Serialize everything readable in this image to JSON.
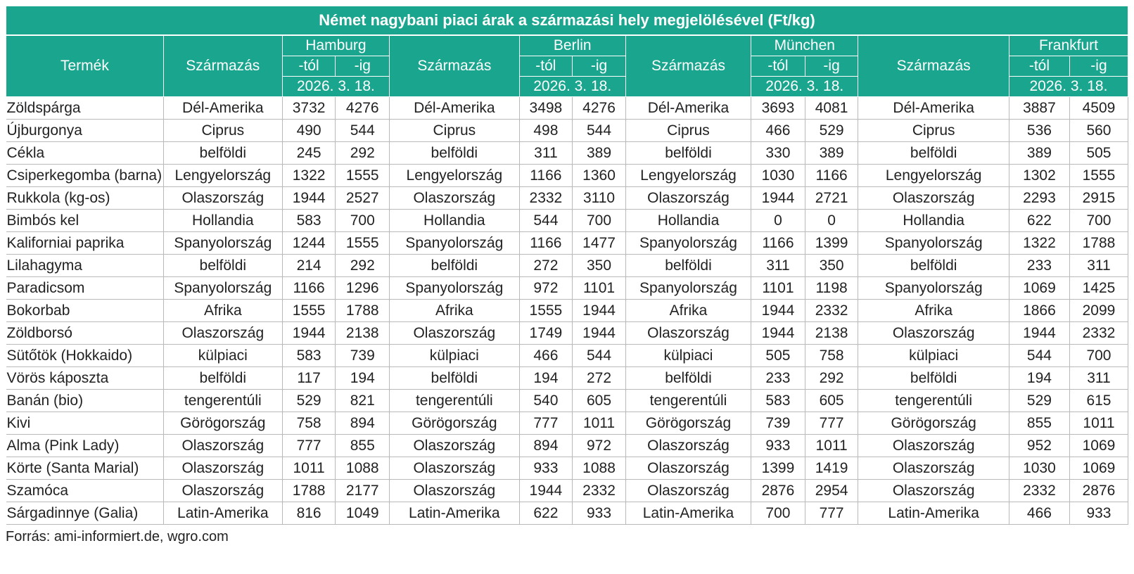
{
  "title": "Német nagybani piaci árak a származási hely megjelölésével (Ft/kg)",
  "header": {
    "product": "Termék",
    "origin": "Származás",
    "from": "-tól",
    "to": "-ig",
    "date": "2026. 3. 18.",
    "cities": [
      "Hamburg",
      "Berlin",
      "München",
      "Frankfurt"
    ]
  },
  "rows": [
    {
      "product": "Zöldspárga",
      "cells": [
        [
          "Dél-Amerika",
          "3732",
          "4276"
        ],
        [
          "Dél-Amerika",
          "3498",
          "4276"
        ],
        [
          "Dél-Amerika",
          "3693",
          "4081"
        ],
        [
          "Dél-Amerika",
          "3887",
          "4509"
        ]
      ]
    },
    {
      "product": "Újburgonya",
      "cells": [
        [
          "Ciprus",
          "490",
          "544"
        ],
        [
          "Ciprus",
          "498",
          "544"
        ],
        [
          "Ciprus",
          "466",
          "529"
        ],
        [
          "Ciprus",
          "536",
          "560"
        ]
      ]
    },
    {
      "product": "Cékla",
      "cells": [
        [
          "belföldi",
          "245",
          "292"
        ],
        [
          "belföldi",
          "311",
          "389"
        ],
        [
          "belföldi",
          "330",
          "389"
        ],
        [
          "belföldi",
          "389",
          "505"
        ]
      ]
    },
    {
      "product": "Csiperkegomba (barna)",
      "cells": [
        [
          "Lengyelország",
          "1322",
          "1555"
        ],
        [
          "Lengyelország",
          "1166",
          "1360"
        ],
        [
          "Lengyelország",
          "1030",
          "1166"
        ],
        [
          "Lengyelország",
          "1302",
          "1555"
        ]
      ]
    },
    {
      "product": "Rukkola (kg-os)",
      "cells": [
        [
          "Olaszország",
          "1944",
          "2527"
        ],
        [
          "Olaszország",
          "2332",
          "3110"
        ],
        [
          "Olaszország",
          "1944",
          "2721"
        ],
        [
          "Olaszország",
          "2293",
          "2915"
        ]
      ]
    },
    {
      "product": "Bimbós kel",
      "cells": [
        [
          "Hollandia",
          "583",
          "700"
        ],
        [
          "Hollandia",
          "544",
          "700"
        ],
        [
          "Hollandia",
          "0",
          "0"
        ],
        [
          "Hollandia",
          "622",
          "700"
        ]
      ]
    },
    {
      "product": "Kaliforniai paprika",
      "cells": [
        [
          "Spanyolország",
          "1244",
          "1555"
        ],
        [
          "Spanyolország",
          "1166",
          "1477"
        ],
        [
          "Spanyolország",
          "1166",
          "1399"
        ],
        [
          "Spanyolország",
          "1322",
          "1788"
        ]
      ]
    },
    {
      "product": "Lilahagyma",
      "cells": [
        [
          "belföldi",
          "214",
          "292"
        ],
        [
          "belföldi",
          "272",
          "350"
        ],
        [
          "belföldi",
          "311",
          "350"
        ],
        [
          "belföldi",
          "233",
          "311"
        ]
      ]
    },
    {
      "product": "Paradicsom",
      "cells": [
        [
          "Spanyolország",
          "1166",
          "1296"
        ],
        [
          "Spanyolország",
          "972",
          "1101"
        ],
        [
          "Spanyolország",
          "1101",
          "1198"
        ],
        [
          "Spanyolország",
          "1069",
          "1425"
        ]
      ]
    },
    {
      "product": "Bokorbab",
      "cells": [
        [
          "Afrika",
          "1555",
          "1788"
        ],
        [
          "Afrika",
          "1555",
          "1944"
        ],
        [
          "Afrika",
          "1944",
          "2332"
        ],
        [
          "Afrika",
          "1866",
          "2099"
        ]
      ]
    },
    {
      "product": "Zöldborsó",
      "cells": [
        [
          "Olaszország",
          "1944",
          "2138"
        ],
        [
          "Olaszország",
          "1749",
          "1944"
        ],
        [
          "Olaszország",
          "1944",
          "2138"
        ],
        [
          "Olaszország",
          "1944",
          "2332"
        ]
      ]
    },
    {
      "product": "Sütőtök (Hokkaido)",
      "cells": [
        [
          "külpiaci",
          "583",
          "739"
        ],
        [
          "külpiaci",
          "466",
          "544"
        ],
        [
          "külpiaci",
          "505",
          "758"
        ],
        [
          "külpiaci",
          "544",
          "700"
        ]
      ]
    },
    {
      "product": "Vörös káposzta",
      "cells": [
        [
          "belföldi",
          "117",
          "194"
        ],
        [
          "belföldi",
          "194",
          "272"
        ],
        [
          "belföldi",
          "233",
          "292"
        ],
        [
          "belföldi",
          "194",
          "311"
        ]
      ]
    },
    {
      "product": "Banán (bio)",
      "cells": [
        [
          "tengerentúli",
          "529",
          "821"
        ],
        [
          "tengerentúli",
          "540",
          "605"
        ],
        [
          "tengerentúli",
          "583",
          "605"
        ],
        [
          "tengerentúli",
          "529",
          "615"
        ]
      ]
    },
    {
      "product": "Kivi",
      "cells": [
        [
          "Görögország",
          "758",
          "894"
        ],
        [
          "Görögország",
          "777",
          "1011"
        ],
        [
          "Görögország",
          "739",
          "777"
        ],
        [
          "Görögország",
          "855",
          "1011"
        ]
      ]
    },
    {
      "product": "Alma (Pink Lady)",
      "cells": [
        [
          "Olaszország",
          "777",
          "855"
        ],
        [
          "Olaszország",
          "894",
          "972"
        ],
        [
          "Olaszország",
          "933",
          "1011"
        ],
        [
          "Olaszország",
          "952",
          "1069"
        ]
      ]
    },
    {
      "product": "Körte (Santa Marial)",
      "cells": [
        [
          "Olaszország",
          "1011",
          "1088"
        ],
        [
          "Olaszország",
          "933",
          "1088"
        ],
        [
          "Olaszország",
          "1399",
          "1419"
        ],
        [
          "Olaszország",
          "1030",
          "1069"
        ]
      ]
    },
    {
      "product": "Szamóca",
      "cells": [
        [
          "Olaszország",
          "1788",
          "2177"
        ],
        [
          "Olaszország",
          "1944",
          "2332"
        ],
        [
          "Olaszország",
          "2876",
          "2954"
        ],
        [
          "Olaszország",
          "2332",
          "2876"
        ]
      ]
    },
    {
      "product": "Sárgadinnye (Galia)",
      "cells": [
        [
          "Latin-Amerika",
          "816",
          "1049"
        ],
        [
          "Latin-Amerika",
          "622",
          "933"
        ],
        [
          "Latin-Amerika",
          "700",
          "777"
        ],
        [
          "Latin-Amerika",
          "466",
          "933"
        ]
      ]
    }
  ],
  "source": "Forrás: ami-informiert.de, wgro.com"
}
